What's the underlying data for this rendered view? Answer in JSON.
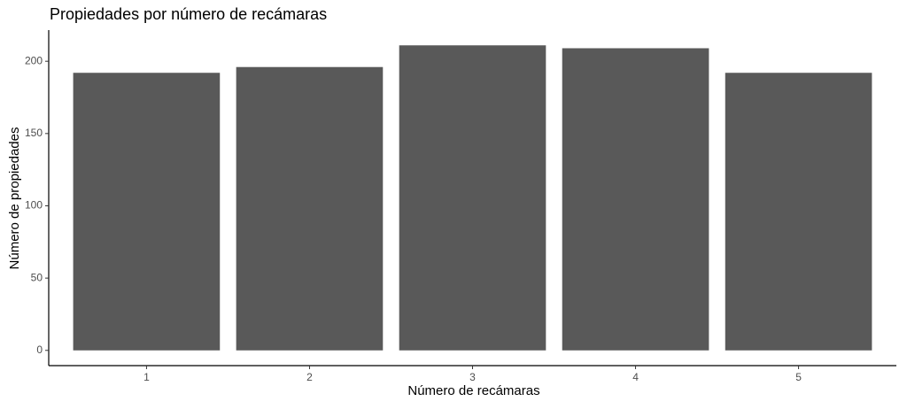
{
  "chart_data": {
    "type": "bar",
    "title": "Propiedades por número de recámaras",
    "x_label": "Número de recámaras",
    "y_label": "Número de propiedades",
    "categories": [
      "1",
      "2",
      "3",
      "4",
      "5"
    ],
    "values": [
      192,
      196,
      211,
      209,
      192
    ],
    "color": "#595959",
    "ylim": [
      -10.55,
      221.55
    ],
    "yticks": [
      0,
      50,
      100,
      150,
      200
    ],
    "grid": false
  }
}
